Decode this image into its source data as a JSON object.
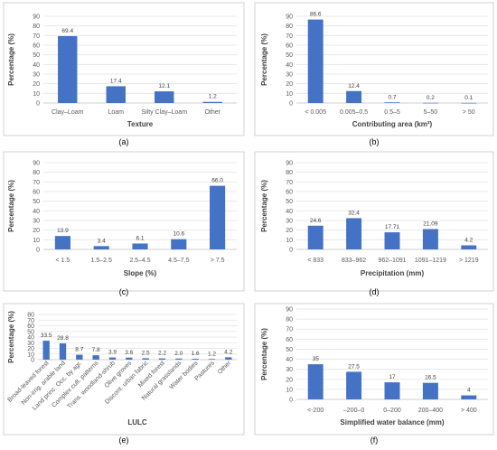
{
  "chart_data": [
    {
      "id": "a",
      "panel_label": "(a)",
      "type": "bar",
      "categories": [
        "Clay–Loam",
        "Loam",
        "Silty Clay–Loam",
        "Other"
      ],
      "values": [
        69.4,
        17.4,
        12.1,
        1.2
      ],
      "data_labels": [
        "69.4",
        "17.4",
        "12.1",
        "1.2"
      ],
      "xlabel": "Texture",
      "ylabel": "Percentage (%)",
      "ylim": [
        0,
        90
      ],
      "yticks": [
        0,
        10,
        20,
        30,
        40,
        50,
        60,
        70,
        80,
        90
      ],
      "grid": true,
      "bar_color": "#4472C4"
    },
    {
      "id": "b",
      "panel_label": "(b)",
      "type": "bar",
      "categories": [
        "< 0.005",
        "0.005–0.5",
        "0.5–5",
        "5–50",
        "> 50"
      ],
      "values": [
        86.6,
        12.4,
        0.7,
        0.2,
        0.1
      ],
      "data_labels": [
        "86.6",
        "12.4",
        "0.7",
        "0.2",
        "0.1"
      ],
      "xlabel": "Contributing area  (km²)",
      "ylabel": "Percentage (%)",
      "ylim": [
        0,
        90
      ],
      "yticks": [
        0,
        10,
        20,
        30,
        40,
        50,
        60,
        70,
        80,
        90
      ],
      "grid": true,
      "bar_color": "#4472C4"
    },
    {
      "id": "c",
      "panel_label": "(c)",
      "type": "bar",
      "categories": [
        "< 1.5",
        "1.5–2.5",
        "2.5–4.5",
        "4.5–7.5",
        "> 7.5"
      ],
      "values": [
        13.9,
        3.4,
        6.1,
        10.6,
        66.0
      ],
      "data_labels": [
        "13.9",
        "3.4",
        "6.1",
        "10.6",
        "66.0"
      ],
      "xlabel": "Slope (%)",
      "ylabel": "Percentage (%)",
      "ylim": [
        0,
        90
      ],
      "yticks": [
        0,
        10,
        20,
        30,
        40,
        50,
        60,
        70,
        80,
        90
      ],
      "grid": true,
      "bar_color": "#4472C4"
    },
    {
      "id": "d",
      "panel_label": "(d)",
      "type": "bar",
      "categories": [
        "< 833",
        "833–962",
        "962–1091",
        "1091–1219",
        "> 1219"
      ],
      "values": [
        24.6,
        32.4,
        17.71,
        21.09,
        4.2
      ],
      "data_labels": [
        "24.6",
        "32.4",
        "17.71",
        "21.09",
        "4.2"
      ],
      "xlabel": "Precipitation (mm)",
      "ylabel": "Percentage (%)",
      "ylim": [
        0,
        90
      ],
      "yticks": [
        0,
        10,
        20,
        30,
        40,
        50,
        60,
        70,
        80,
        90
      ],
      "grid": true,
      "bar_color": "#4472C4"
    },
    {
      "id": "e",
      "panel_label": "(e)",
      "type": "bar",
      "categories": [
        "Broad-leaved forest",
        "Non-irrig. arable land",
        "Land princ. Occ. by agr.",
        "Complex cult. patterns",
        "Trans. woodland-shrub",
        "Olive groves",
        "Discont. urban fabric",
        "Mixed forest",
        "Natural grasslands",
        "Water bodies",
        "Pastures",
        "Other"
      ],
      "values": [
        33.5,
        28.8,
        8.7,
        7.8,
        3.9,
        3.6,
        2.5,
        2.2,
        2.0,
        1.6,
        1.2,
        4.2
      ],
      "data_labels": [
        "33.5",
        "28.8",
        "8.7",
        "7.8",
        "3.9",
        "3.6",
        "2.5",
        "2.2",
        "2.0",
        "1.6",
        "1.2",
        "4.2"
      ],
      "xlabel": "LULC",
      "ylabel": "Percentage (%)",
      "ylim": [
        0,
        80
      ],
      "yticks": [
        0,
        10,
        20,
        30,
        40,
        50,
        60,
        70,
        80
      ],
      "grid": true,
      "bar_color": "#4472C4"
    },
    {
      "id": "f",
      "panel_label": "(f)",
      "type": "bar",
      "categories": [
        "<-200",
        "–200–0",
        "0–200",
        "200–400",
        "> 400"
      ],
      "values": [
        35,
        27.5,
        17,
        16.5,
        4
      ],
      "data_labels": [
        "35",
        "27.5",
        "17",
        "16.5",
        "4"
      ],
      "xlabel": "Simplified water balance (mm)",
      "ylabel": "Percentage (%)",
      "ylim": [
        0,
        90
      ],
      "yticks": [
        0,
        10,
        20,
        30,
        40,
        50,
        60,
        70,
        80,
        90
      ],
      "grid": true,
      "bar_color": "#4472C4"
    }
  ]
}
